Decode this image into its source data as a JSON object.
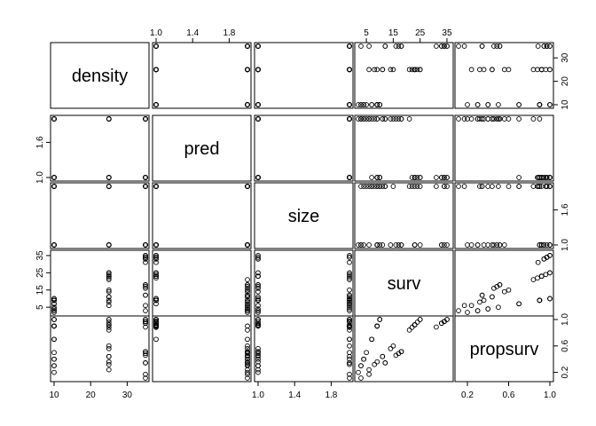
{
  "chart_data": {
    "type": "scatter",
    "title": "",
    "variables": [
      "density",
      "pred",
      "size",
      "surv",
      "propsurv"
    ],
    "axes": {
      "density": {
        "lim": [
          10,
          35
        ],
        "ticks": [
          10,
          20,
          30
        ],
        "tick_labels": [
          "10",
          "20",
          "30"
        ]
      },
      "pred": {
        "lim": [
          1,
          2
        ],
        "ticks": [
          1.0,
          1.4,
          1.8
        ],
        "tick_labels": [
          "1.0",
          "1.4",
          "1.8"
        ]
      },
      "size": {
        "lim": [
          1,
          2
        ],
        "ticks": [
          1.0,
          1.6
        ],
        "tick_labels": [
          "1.0",
          "1.6"
        ]
      },
      "surv": {
        "lim": [
          2,
          36
        ],
        "ticks": [
          5,
          15,
          25,
          35
        ],
        "tick_labels": [
          "5",
          "15",
          "25",
          "35"
        ]
      },
      "propsurv": {
        "lim": [
          0.114,
          1
        ],
        "ticks": [
          0.2,
          0.6,
          1.0
        ],
        "tick_labels": [
          "0.2",
          "0.6",
          "1.0"
        ]
      }
    },
    "axis_annotations": {
      "top": [
        {
          "var": "pred",
          "ticks": [
            1.0,
            1.4,
            1.8
          ]
        },
        {
          "var": "surv",
          "ticks": [
            5,
            15,
            25,
            35
          ]
        }
      ],
      "bottom": [
        {
          "var": "density",
          "ticks": [
            10,
            20,
            30
          ]
        },
        {
          "var": "size",
          "ticks": [
            1.0,
            1.4,
            1.8
          ]
        },
        {
          "var": "propsurv",
          "ticks": [
            0.2,
            0.6,
            1.0
          ]
        }
      ],
      "left": [
        {
          "var": "pred",
          "ticks": [
            1.0,
            1.6
          ]
        },
        {
          "var": "surv",
          "ticks": [
            5,
            15,
            25,
            35
          ]
        }
      ],
      "right": [
        {
          "var": "density",
          "ticks": [
            10,
            20,
            30
          ]
        },
        {
          "var": "size",
          "ticks": [
            1.0,
            1.6
          ]
        },
        {
          "var": "propsurv",
          "ticks": [
            0.2,
            0.6,
            1.0
          ]
        }
      ]
    },
    "data": {
      "density": [
        10,
        10,
        10,
        10,
        10,
        10,
        10,
        10,
        10,
        10,
        10,
        10,
        10,
        10,
        10,
        10,
        25,
        25,
        25,
        25,
        25,
        25,
        25,
        25,
        25,
        25,
        25,
        25,
        25,
        25,
        25,
        25,
        35,
        35,
        35,
        35,
        35,
        35,
        35,
        35,
        35,
        35,
        35,
        35,
        35,
        35,
        35,
        35
      ],
      "pred": [
        1,
        1,
        1,
        1,
        1,
        1,
        1,
        1,
        2,
        2,
        2,
        2,
        2,
        2,
        2,
        2,
        1,
        1,
        1,
        1,
        1,
        1,
        1,
        1,
        2,
        2,
        2,
        2,
        2,
        2,
        2,
        2,
        1,
        1,
        1,
        1,
        1,
        1,
        1,
        1,
        2,
        2,
        2,
        2,
        2,
        2,
        2,
        2
      ],
      "size": [
        2,
        2,
        2,
        2,
        1,
        1,
        1,
        1,
        2,
        2,
        2,
        2,
        1,
        1,
        1,
        1,
        2,
        2,
        2,
        2,
        1,
        1,
        1,
        1,
        2,
        2,
        2,
        2,
        1,
        1,
        1,
        1,
        2,
        2,
        2,
        2,
        1,
        1,
        1,
        1,
        2,
        2,
        2,
        2,
        1,
        1,
        1,
        1
      ],
      "surv": [
        9,
        10,
        7,
        10,
        9,
        9,
        10,
        9,
        4,
        9,
        7,
        5,
        3,
        4,
        3,
        2,
        24,
        23,
        22,
        25,
        23,
        23,
        23,
        25,
        8,
        11,
        15,
        21,
        14,
        11,
        9,
        6,
        31,
        34,
        34,
        35,
        34,
        33,
        33,
        35,
        3,
        12,
        12,
        6,
        18,
        17,
        16,
        18
      ],
      "propsurv": [
        0.9,
        1,
        0.7,
        1,
        0.9,
        0.9,
        1,
        0.9,
        0.4,
        0.9,
        0.7,
        0.5,
        0.3,
        0.4,
        0.3,
        0.2,
        0.96,
        0.92,
        0.88,
        1,
        0.92,
        0.92,
        0.92,
        1,
        0.32,
        0.44,
        0.6,
        0.84,
        0.56,
        0.44,
        0.36,
        0.24,
        0.886,
        0.971,
        0.971,
        1,
        0.971,
        0.943,
        0.943,
        1,
        0.114,
        0.343,
        0.343,
        0.171,
        0.514,
        0.486,
        0.457,
        0.514
      ]
    }
  }
}
